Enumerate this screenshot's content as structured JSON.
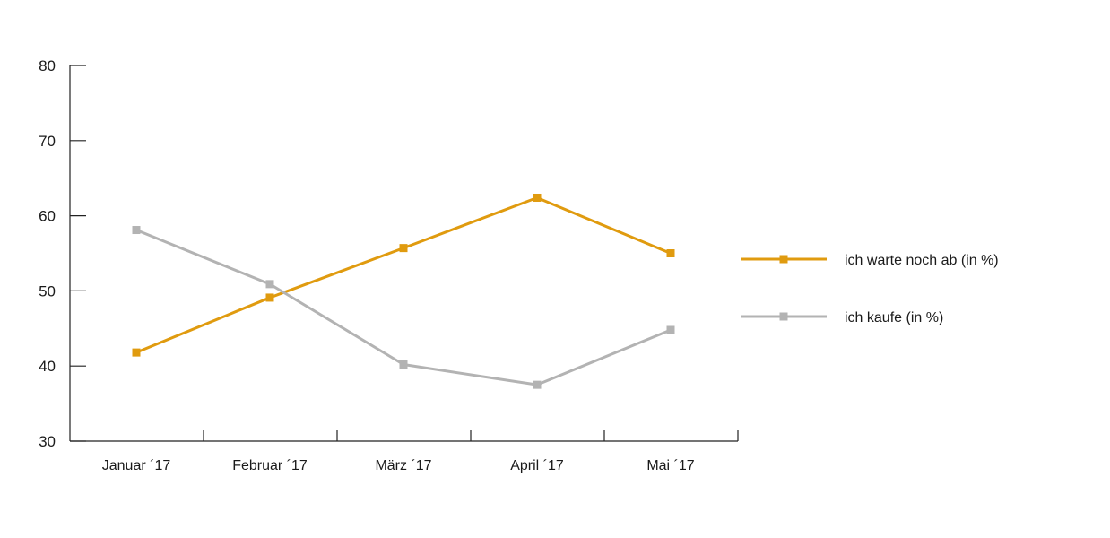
{
  "chart_data": {
    "type": "line",
    "title": "",
    "xlabel": "",
    "ylabel": "",
    "categories": [
      "Januar ´17",
      "Februar ´17",
      "März ´17",
      "April ´17",
      "Mai ´17"
    ],
    "ylim": [
      30,
      80
    ],
    "yticks": [
      30,
      40,
      50,
      60,
      70,
      80
    ],
    "grid": false,
    "legend_position": "right",
    "series": [
      {
        "name": "ich warte noch ab (in %)",
        "color": "#E09B0F",
        "marker": "square",
        "values": [
          41.8,
          49.1,
          55.7,
          62.4,
          55.0
        ]
      },
      {
        "name": "ich kaufe (in %)",
        "color": "#B3B3B3",
        "marker": "square",
        "values": [
          58.1,
          50.9,
          40.2,
          37.5,
          44.8
        ]
      }
    ]
  }
}
